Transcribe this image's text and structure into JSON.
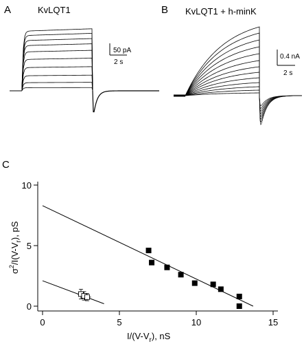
{
  "panels": {
    "a": {
      "label": "A",
      "title": "KvLQT1",
      "scale_current": "50 pA",
      "scale_time": "2 s",
      "trace_plateaus": [
        95,
        88,
        80,
        72,
        62,
        50,
        37,
        24,
        13,
        5
      ],
      "tail_depth": 48
    },
    "b": {
      "label": "B",
      "title": "KvLQT1 + h-minK",
      "scale_current": "0.4 nA",
      "scale_time": "2 s",
      "trace_finals": [
        100,
        91,
        81,
        71,
        61,
        51,
        42,
        34,
        26,
        19,
        13,
        8,
        4
      ],
      "tail_depth": 58
    }
  },
  "chart_data": {
    "type": "scatter",
    "panel_label": "C",
    "xlabel": "I/(V-V",
    "xlabel_sub": "r",
    "xlabel_tail": "),  nS",
    "ylabel_sigma": "σ",
    "ylabel_sup": "2",
    "ylabel_mid": "/I(V-V",
    "ylabel_sub": "r",
    "ylabel_tail": "),  pS",
    "xlim": [
      -0.3,
      15
    ],
    "ylim": [
      -0.3,
      10
    ],
    "xticks": [
      "0",
      "5",
      "10",
      "15"
    ],
    "yticks": [
      "0",
      "5",
      "10"
    ],
    "xtick_values": [
      0,
      5,
      10,
      15
    ],
    "ytick_values": [
      0,
      5,
      10
    ],
    "series": [
      {
        "marker": "filled-square",
        "points": [
          [
            6.9,
            4.6
          ],
          [
            7.1,
            3.6
          ],
          [
            8.1,
            3.2
          ],
          [
            9.0,
            2.6
          ],
          [
            9.9,
            1.9
          ],
          [
            11.1,
            1.8
          ],
          [
            11.6,
            1.4
          ],
          [
            12.8,
            0.8
          ],
          [
            12.8,
            0.0
          ]
        ],
        "fit": [
          [
            0.0,
            8.3
          ],
          [
            13.7,
            0.0
          ]
        ]
      },
      {
        "marker": "open-square",
        "points": [
          [
            2.5,
            1.0
          ],
          [
            2.7,
            0.85
          ],
          [
            2.9,
            0.75
          ]
        ],
        "error_y": [
          0.4,
          0.35,
          0.3
        ],
        "error_x": [
          0.25,
          0.25,
          0.25
        ],
        "fit": [
          [
            0.0,
            2.1
          ],
          [
            4.0,
            0.2
          ]
        ]
      }
    ]
  }
}
